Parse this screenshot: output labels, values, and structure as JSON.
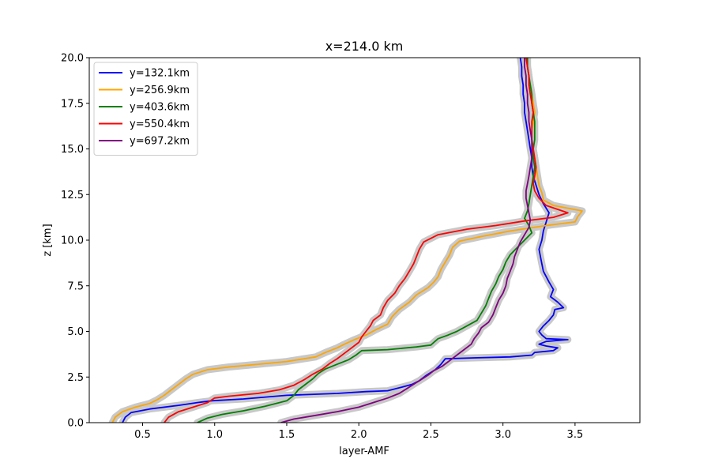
{
  "chart_data": {
    "type": "line",
    "title": "x=214.0 km",
    "xlabel": "layer-AMF",
    "ylabel": "z [km]",
    "xlim": [
      0.13,
      3.95
    ],
    "ylim": [
      0,
      20
    ],
    "xticks": [
      0.5,
      1.0,
      1.5,
      2.0,
      2.5,
      3.0,
      3.5
    ],
    "xtick_labels": [
      "0.5",
      "1.0",
      "1.5",
      "2.0",
      "2.5",
      "3.0",
      "3.5"
    ],
    "yticks": [
      0,
      2.5,
      5,
      7.5,
      10,
      12.5,
      15,
      17.5,
      20
    ],
    "ytick_labels": [
      "0.0",
      "2.5",
      "5.0",
      "7.5",
      "10.0",
      "12.5",
      "15.0",
      "17.5",
      "20.0"
    ],
    "legend_position": "top-left",
    "grid": false,
    "uncertainty_band_color": "#c8c8c8",
    "series": [
      {
        "name": "y=132.1km",
        "color": "#0000ff",
        "points": [
          [
            0.36,
            0
          ],
          [
            0.38,
            0.3
          ],
          [
            0.42,
            0.55
          ],
          [
            0.55,
            0.75
          ],
          [
            0.75,
            0.95
          ],
          [
            0.88,
            1.1
          ],
          [
            0.98,
            1.2
          ],
          [
            1.2,
            1.3
          ],
          [
            1.5,
            1.5
          ],
          [
            1.85,
            1.6
          ],
          [
            2.05,
            1.7
          ],
          [
            2.2,
            1.75
          ],
          [
            2.3,
            1.95
          ],
          [
            2.37,
            2.1
          ],
          [
            2.42,
            2.3
          ],
          [
            2.47,
            2.6
          ],
          [
            2.53,
            2.9
          ],
          [
            2.57,
            3.2
          ],
          [
            2.6,
            3.5
          ],
          [
            2.8,
            3.55
          ],
          [
            3.05,
            3.6
          ],
          [
            3.2,
            3.7
          ],
          [
            3.22,
            3.85
          ],
          [
            3.35,
            3.95
          ],
          [
            3.38,
            4.1
          ],
          [
            3.3,
            4.2
          ],
          [
            3.25,
            4.3
          ],
          [
            3.3,
            4.45
          ],
          [
            3.45,
            4.55
          ],
          [
            3.3,
            4.6
          ],
          [
            3.27,
            4.8
          ],
          [
            3.25,
            5.0
          ],
          [
            3.28,
            5.3
          ],
          [
            3.32,
            5.6
          ],
          [
            3.35,
            5.9
          ],
          [
            3.36,
            6.2
          ],
          [
            3.42,
            6.3
          ],
          [
            3.38,
            6.6
          ],
          [
            3.33,
            6.9
          ],
          [
            3.35,
            7.3
          ],
          [
            3.32,
            7.7
          ],
          [
            3.3,
            8.0
          ],
          [
            3.28,
            8.3
          ],
          [
            3.27,
            8.7
          ],
          [
            3.26,
            9.1
          ],
          [
            3.25,
            9.5
          ],
          [
            3.27,
            10.0
          ],
          [
            3.28,
            10.5
          ],
          [
            3.3,
            11.0
          ],
          [
            3.32,
            11.5
          ],
          [
            3.28,
            12.0
          ],
          [
            3.25,
            12.5
          ],
          [
            3.23,
            13.0
          ],
          [
            3.21,
            13.5
          ],
          [
            3.2,
            14.0
          ],
          [
            3.2,
            14.5
          ],
          [
            3.19,
            15.0
          ],
          [
            3.18,
            15.5
          ],
          [
            3.17,
            16.0
          ],
          [
            3.16,
            16.5
          ],
          [
            3.15,
            17.0
          ],
          [
            3.15,
            17.5
          ],
          [
            3.14,
            18.0
          ],
          [
            3.14,
            18.5
          ],
          [
            3.13,
            19.0
          ],
          [
            3.13,
            19.5
          ],
          [
            3.12,
            20.0
          ]
        ]
      },
      {
        "name": "y=256.9km",
        "color": "#ffa500",
        "points": [
          [
            0.29,
            0
          ],
          [
            0.31,
            0.3
          ],
          [
            0.36,
            0.6
          ],
          [
            0.45,
            0.85
          ],
          [
            0.55,
            1.05
          ],
          [
            0.6,
            1.25
          ],
          [
            0.65,
            1.5
          ],
          [
            0.7,
            1.8
          ],
          [
            0.75,
            2.1
          ],
          [
            0.8,
            2.4
          ],
          [
            0.85,
            2.65
          ],
          [
            0.95,
            2.9
          ],
          [
            1.1,
            3.05
          ],
          [
            1.3,
            3.2
          ],
          [
            1.5,
            3.35
          ],
          [
            1.7,
            3.6
          ],
          [
            1.77,
            3.85
          ],
          [
            1.85,
            4.1
          ],
          [
            1.9,
            4.3
          ],
          [
            1.97,
            4.55
          ],
          [
            2.05,
            4.8
          ],
          [
            2.12,
            5.1
          ],
          [
            2.2,
            5.4
          ],
          [
            2.23,
            5.8
          ],
          [
            2.28,
            6.2
          ],
          [
            2.35,
            6.6
          ],
          [
            2.4,
            7.0
          ],
          [
            2.48,
            7.4
          ],
          [
            2.52,
            7.7
          ],
          [
            2.55,
            8.0
          ],
          [
            2.57,
            8.4
          ],
          [
            2.6,
            8.8
          ],
          [
            2.63,
            9.2
          ],
          [
            2.65,
            9.6
          ],
          [
            2.7,
            9.95
          ],
          [
            2.85,
            10.2
          ],
          [
            3.05,
            10.5
          ],
          [
            3.3,
            10.8
          ],
          [
            3.5,
            11.0
          ],
          [
            3.52,
            11.3
          ],
          [
            3.55,
            11.6
          ],
          [
            3.35,
            11.9
          ],
          [
            3.28,
            12.2
          ],
          [
            3.27,
            12.6
          ],
          [
            3.25,
            13.0
          ],
          [
            3.24,
            13.5
          ],
          [
            3.23,
            14.0
          ],
          [
            3.22,
            14.5
          ],
          [
            3.21,
            15.0
          ],
          [
            3.2,
            15.5
          ],
          [
            3.2,
            16.0
          ],
          [
            3.21,
            16.5
          ],
          [
            3.22,
            17.0
          ],
          [
            3.21,
            17.5
          ],
          [
            3.2,
            18.0
          ],
          [
            3.19,
            18.5
          ],
          [
            3.18,
            19.0
          ],
          [
            3.17,
            19.5
          ],
          [
            3.16,
            20.0
          ]
        ]
      },
      {
        "name": "y=403.6km",
        "color": "#008000",
        "points": [
          [
            0.88,
            0
          ],
          [
            0.95,
            0.25
          ],
          [
            1.05,
            0.45
          ],
          [
            1.2,
            0.65
          ],
          [
            1.35,
            0.9
          ],
          [
            1.5,
            1.2
          ],
          [
            1.55,
            1.5
          ],
          [
            1.58,
            1.8
          ],
          [
            1.63,
            2.1
          ],
          [
            1.68,
            2.4
          ],
          [
            1.72,
            2.7
          ],
          [
            1.77,
            2.95
          ],
          [
            1.85,
            3.2
          ],
          [
            1.93,
            3.45
          ],
          [
            1.98,
            3.7
          ],
          [
            2.02,
            3.95
          ],
          [
            2.2,
            4.0
          ],
          [
            2.4,
            4.15
          ],
          [
            2.5,
            4.25
          ],
          [
            2.52,
            4.4
          ],
          [
            2.55,
            4.6
          ],
          [
            2.62,
            4.8
          ],
          [
            2.68,
            5.0
          ],
          [
            2.75,
            5.3
          ],
          [
            2.82,
            5.6
          ],
          [
            2.85,
            6.0
          ],
          [
            2.88,
            6.4
          ],
          [
            2.9,
            6.8
          ],
          [
            2.92,
            7.2
          ],
          [
            2.95,
            7.6
          ],
          [
            2.97,
            8.0
          ],
          [
            3.0,
            8.4
          ],
          [
            3.02,
            8.8
          ],
          [
            3.05,
            9.2
          ],
          [
            3.1,
            9.6
          ],
          [
            3.15,
            10.0
          ],
          [
            3.2,
            10.4
          ],
          [
            3.18,
            10.8
          ],
          [
            3.15,
            11.2
          ],
          [
            3.17,
            11.6
          ],
          [
            3.18,
            12.0
          ],
          [
            3.19,
            12.5
          ],
          [
            3.2,
            13.0
          ],
          [
            3.21,
            13.5
          ],
          [
            3.22,
            14.0
          ],
          [
            3.21,
            14.5
          ],
          [
            3.21,
            15.0
          ],
          [
            3.22,
            15.5
          ],
          [
            3.22,
            16.0
          ],
          [
            3.22,
            16.5
          ],
          [
            3.21,
            17.0
          ],
          [
            3.2,
            17.5
          ],
          [
            3.2,
            18.0
          ],
          [
            3.19,
            18.5
          ],
          [
            3.18,
            19.0
          ],
          [
            3.17,
            19.5
          ],
          [
            3.17,
            20.0
          ]
        ]
      },
      {
        "name": "y=550.4km",
        "color": "#ff0000",
        "points": [
          [
            0.65,
            0
          ],
          [
            0.68,
            0.3
          ],
          [
            0.75,
            0.6
          ],
          [
            0.85,
            0.85
          ],
          [
            0.95,
            1.1
          ],
          [
            1.0,
            1.35
          ],
          [
            1.1,
            1.45
          ],
          [
            1.3,
            1.6
          ],
          [
            1.45,
            1.8
          ],
          [
            1.55,
            2.05
          ],
          [
            1.62,
            2.35
          ],
          [
            1.68,
            2.65
          ],
          [
            1.75,
            2.95
          ],
          [
            1.8,
            3.25
          ],
          [
            1.85,
            3.5
          ],
          [
            1.9,
            3.8
          ],
          [
            1.95,
            4.1
          ],
          [
            2.0,
            4.4
          ],
          [
            2.02,
            4.7
          ],
          [
            2.05,
            5.0
          ],
          [
            2.08,
            5.3
          ],
          [
            2.1,
            5.6
          ],
          [
            2.15,
            5.9
          ],
          [
            2.17,
            6.3
          ],
          [
            2.2,
            6.7
          ],
          [
            2.25,
            7.1
          ],
          [
            2.28,
            7.5
          ],
          [
            2.32,
            7.9
          ],
          [
            2.35,
            8.3
          ],
          [
            2.38,
            8.7
          ],
          [
            2.4,
            9.1
          ],
          [
            2.42,
            9.5
          ],
          [
            2.45,
            9.9
          ],
          [
            2.55,
            10.3
          ],
          [
            2.75,
            10.6
          ],
          [
            2.95,
            10.8
          ],
          [
            3.15,
            11.05
          ],
          [
            3.35,
            11.25
          ],
          [
            3.45,
            11.5
          ],
          [
            3.3,
            11.9
          ],
          [
            3.25,
            12.3
          ],
          [
            3.22,
            12.7
          ],
          [
            3.21,
            13.1
          ],
          [
            3.22,
            13.5
          ],
          [
            3.23,
            14.0
          ],
          [
            3.22,
            14.5
          ],
          [
            3.21,
            15.0
          ],
          [
            3.2,
            15.5
          ],
          [
            3.2,
            16.0
          ],
          [
            3.2,
            16.5
          ],
          [
            3.21,
            17.0
          ],
          [
            3.2,
            17.5
          ],
          [
            3.19,
            18.0
          ],
          [
            3.18,
            18.5
          ],
          [
            3.18,
            19.0
          ],
          [
            3.17,
            19.5
          ],
          [
            3.16,
            20.0
          ]
        ]
      },
      {
        "name": "y=697.2km",
        "color": "#800080",
        "points": [
          [
            1.46,
            0
          ],
          [
            1.55,
            0.2
          ],
          [
            1.7,
            0.4
          ],
          [
            1.85,
            0.6
          ],
          [
            2.0,
            0.85
          ],
          [
            2.1,
            1.1
          ],
          [
            2.2,
            1.35
          ],
          [
            2.28,
            1.6
          ],
          [
            2.33,
            1.85
          ],
          [
            2.38,
            2.1
          ],
          [
            2.43,
            2.35
          ],
          [
            2.48,
            2.6
          ],
          [
            2.52,
            2.85
          ],
          [
            2.58,
            3.1
          ],
          [
            2.63,
            3.4
          ],
          [
            2.68,
            3.7
          ],
          [
            2.73,
            4.0
          ],
          [
            2.78,
            4.3
          ],
          [
            2.8,
            4.6
          ],
          [
            2.83,
            4.9
          ],
          [
            2.85,
            5.2
          ],
          [
            2.9,
            5.5
          ],
          [
            2.93,
            5.9
          ],
          [
            2.95,
            6.3
          ],
          [
            2.97,
            6.7
          ],
          [
            3.0,
            7.1
          ],
          [
            3.02,
            7.5
          ],
          [
            3.03,
            7.9
          ],
          [
            3.05,
            8.3
          ],
          [
            3.07,
            8.7
          ],
          [
            3.08,
            9.1
          ],
          [
            3.1,
            9.5
          ],
          [
            3.12,
            9.9
          ],
          [
            3.15,
            10.3
          ],
          [
            3.18,
            10.7
          ],
          [
            3.19,
            11.1
          ],
          [
            3.18,
            11.5
          ],
          [
            3.17,
            11.9
          ],
          [
            3.16,
            12.3
          ],
          [
            3.16,
            12.7
          ],
          [
            3.17,
            13.1
          ],
          [
            3.18,
            13.5
          ],
          [
            3.19,
            14.0
          ],
          [
            3.2,
            14.5
          ],
          [
            3.2,
            15.0
          ],
          [
            3.2,
            15.5
          ],
          [
            3.19,
            16.0
          ],
          [
            3.18,
            16.5
          ],
          [
            3.18,
            17.0
          ],
          [
            3.17,
            17.5
          ],
          [
            3.17,
            18.0
          ],
          [
            3.16,
            18.5
          ],
          [
            3.16,
            19.0
          ],
          [
            3.15,
            19.5
          ],
          [
            3.15,
            20.0
          ]
        ]
      }
    ]
  }
}
